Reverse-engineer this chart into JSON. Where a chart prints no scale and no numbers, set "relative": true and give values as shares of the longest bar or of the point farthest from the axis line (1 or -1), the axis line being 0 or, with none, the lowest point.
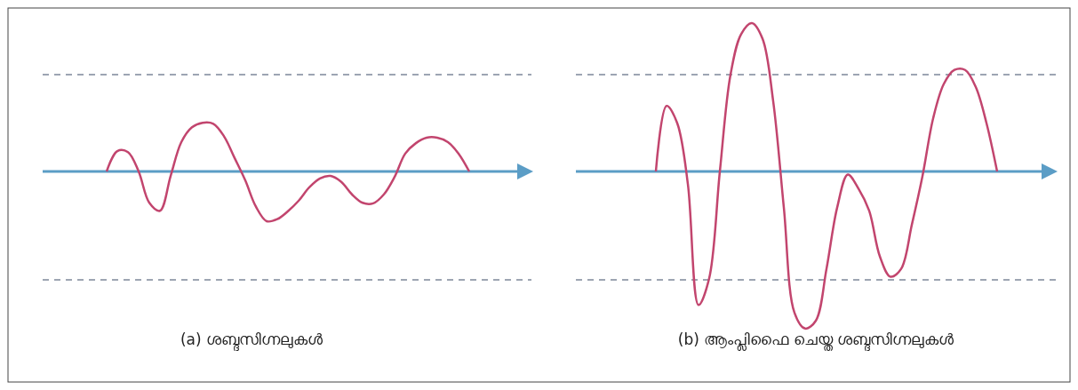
{
  "chart_data": [
    {
      "type": "line",
      "title": "(a) ശബ്ദസിഗ്നലുകൾ",
      "relative": true,
      "categories": [
        null,
        null,
        null,
        null,
        null,
        null,
        null,
        null,
        null,
        null,
        null,
        null,
        null,
        null,
        null,
        null,
        null,
        null,
        null,
        null,
        null,
        null,
        null,
        null,
        null,
        null,
        null,
        null,
        null,
        null,
        null,
        null,
        null,
        null,
        null
      ],
      "series": [
        {
          "color": "#c2456e",
          "values": [
            0,
            0.41,
            0.39,
            0,
            -0.63,
            -0.79,
            -0.09,
            0.59,
            0.89,
            0.98,
            0.96,
            0.71,
            0.27,
            -0.18,
            -0.71,
            -1,
            -0.96,
            -0.8,
            -0.59,
            -0.32,
            -0.14,
            -0.09,
            -0.21,
            -0.46,
            -0.63,
            -0.64,
            -0.46,
            -0.11,
            0.36,
            0.57,
            0.68,
            0.68,
            0.59,
            0.36,
            0
          ]
        }
      ],
      "ref_lines": [
        {
          "axis": "y",
          "value": 0,
          "color": "#5b9dc6",
          "line_style": "solid"
        },
        {
          "axis": "y",
          "value": 1.95,
          "color": "#3b4a66",
          "line_style": "dashed"
        },
        {
          "axis": "y",
          "value": -2.18,
          "color": "#3b4a66",
          "line_style": "dashed"
        }
      ],
      "grid": false
    },
    {
      "type": "line",
      "title": "(b) ആംപ്ലിഫൈ ചെയ്ത ശബ്ദസിഗ്നലുകൾ",
      "relative": true,
      "categories": [
        null,
        null,
        null,
        null,
        null,
        null,
        null,
        null,
        null,
        null,
        null,
        null,
        null,
        null,
        null,
        null,
        null,
        null,
        null,
        null,
        null,
        null,
        null,
        null,
        null,
        null,
        null,
        null,
        null,
        null,
        null,
        null,
        null
      ],
      "series": [
        {
          "color": "#c2456e",
          "values": [
            0,
            0.42,
            0.31,
            -0.08,
            -0.85,
            -0.68,
            0,
            0.62,
            0.88,
            0.95,
            0.85,
            0.45,
            -0.23,
            -0.9,
            -1,
            -0.95,
            -0.62,
            -0.23,
            -0.02,
            -0.11,
            -0.25,
            -0.54,
            -0.67,
            -0.62,
            -0.34,
            -0.03,
            0.34,
            0.56,
            0.65,
            0.65,
            0.54,
            0.31,
            0
          ]
        }
      ],
      "ref_lines": [
        {
          "axis": "y",
          "value": 0,
          "color": "#5b9dc6",
          "line_style": "solid"
        },
        {
          "axis": "y",
          "value": 0.62,
          "color": "#3b4a66",
          "line_style": "dashed"
        },
        {
          "axis": "y",
          "value": -0.69,
          "color": "#3b4a66",
          "line_style": "dashed"
        }
      ],
      "grid": false
    }
  ]
}
